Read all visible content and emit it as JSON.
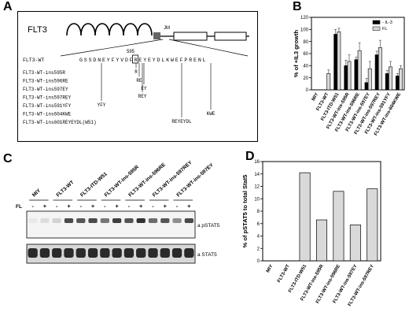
{
  "panels": {
    "a": "A",
    "b": "B",
    "c": "C",
    "d": "D"
  },
  "panel_a": {
    "protein": "FLT3",
    "jm_label": "JM",
    "position_label": "595",
    "wt_label": "FLT3-WT",
    "sequence": "GSSDNEYFYVDFREYEYDLKWEFPRENL",
    "constructs": [
      "FLT3-WT-ins595R",
      "FLT3-WT-ins596RE",
      "FLT3-WT-ins597EY",
      "FLT3-WT-ins597REY",
      "FLT3-WT-ins591YFY",
      "FLT3-WT-ins604KWE",
      "FLT3-WT-ins601REYEYDL(W51)"
    ],
    "insertions": [
      "R",
      "RE",
      "EY",
      "REY",
      "YFY",
      "KWE",
      "REYEYDL"
    ]
  },
  "chart_data": [
    {
      "type": "bar",
      "panel": "B",
      "ylabel": "% of +IL3 growth",
      "ylim": [
        0,
        120
      ],
      "yticks": [
        0,
        20,
        40,
        60,
        80,
        100,
        120
      ],
      "categories": [
        "MIY",
        "FLT3-WT",
        "FLT3-ITD-W51",
        "FLT3-WT-ins-595R",
        "FLT3-WT-ins-596RE",
        "FLT3-WT-ins-597EY",
        "FLT3-WT-ins-597REY",
        "FLT3-WT-ins-591YFY",
        "FLT3-WT-ins-604KWE"
      ],
      "series": [
        {
          "name": "- IL-3",
          "color": "#000000",
          "values": [
            0,
            0,
            92,
            40,
            50,
            12,
            58,
            27,
            23
          ],
          "errors": [
            0,
            0,
            8,
            9,
            4,
            7,
            6,
            5,
            4
          ]
        },
        {
          "name": "FL",
          "color": "#d9d9d9",
          "values": [
            0,
            27,
            96,
            47,
            65,
            35,
            70,
            38,
            35
          ],
          "errors": [
            0,
            6,
            6,
            11,
            13,
            12,
            12,
            9,
            5
          ]
        }
      ],
      "legend_position": "top-right"
    },
    {
      "type": "bar",
      "panel": "D",
      "ylabel": "% of pSTAT5 to total Stat5",
      "ylim": [
        0,
        16
      ],
      "yticks": [
        0,
        2,
        4,
        6,
        8,
        10,
        12,
        14,
        16
      ],
      "categories": [
        "MIY",
        "FLT3-WT",
        "FLT3-ITD-W51",
        "FLT3-WT-ins-595R",
        "FLT3-WT-ins-596RE",
        "FLT3-WT-ins-597EY",
        "FLT3-WT-ins-597REY"
      ],
      "values": [
        0,
        0,
        14.2,
        6.6,
        11.2,
        5.8,
        11.6
      ],
      "color": "#d9d9d9"
    }
  ],
  "panel_c": {
    "lanes": [
      "MIY",
      "FLT3-WT",
      "FLT3-ITD-W51",
      "FLT3-WT-ins-595R",
      "FLT3-WT-ins-596RE",
      "FLT3-WT-ins-597REY",
      "FLT3-WT-ins-597EY"
    ],
    "fl_label": "FL",
    "minus": "-",
    "plus": "+",
    "blot1_label": "a pSTAT5",
    "blot2_label": "a STAT5"
  }
}
